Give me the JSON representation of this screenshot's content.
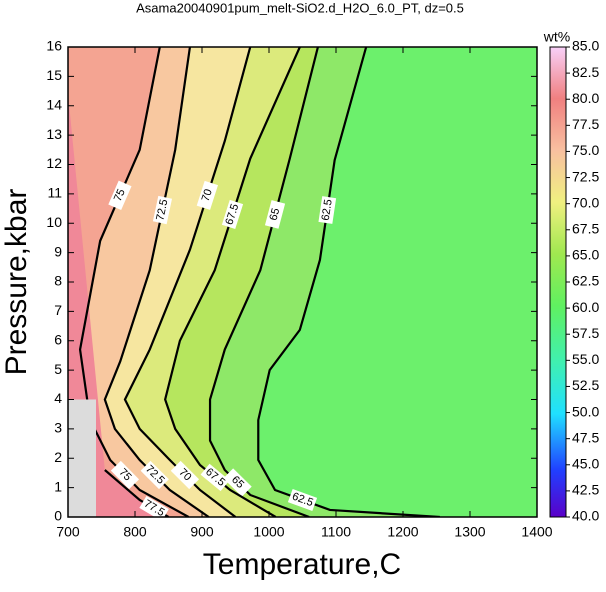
{
  "chart_data": {
    "type": "contour",
    "title": "Asama20040901pum_melt-SiO2.d_H2O_6.0_PT, dz=0.5",
    "xlabel": "Temperature,C",
    "ylabel": "Pressure,kbar",
    "xlim": [
      700,
      1400
    ],
    "ylim": [
      0,
      16
    ],
    "xticks": [
      700,
      800,
      900,
      1000,
      1100,
      1200,
      1300,
      1400
    ],
    "yticks": [
      0,
      1,
      2,
      3,
      4,
      5,
      6,
      7,
      8,
      9,
      10,
      11,
      12,
      13,
      14,
      15,
      16
    ],
    "background_color": "#6cf06c",
    "contours": [
      {
        "level": 62.5,
        "color": "#8ee868",
        "x": [
          1145,
          1098,
          1076,
          1046,
          1001,
          984,
          984,
          1009,
          1091,
          1255
        ],
        "y": [
          16,
          12.15,
          8.75,
          6.37,
          5.0,
          3.3,
          1.94,
          0.92,
          0.24,
          0
        ]
      },
      {
        "level": 65,
        "color": "#b6e65e",
        "x": [
          1073,
          1031,
          987,
          934,
          912,
          912,
          934,
          972,
          1060
        ],
        "y": [
          16,
          12.2,
          8.4,
          5.7,
          4.0,
          2.6,
          1.6,
          0.75,
          0
        ]
      },
      {
        "level": 67.5,
        "color": "#dcea7c",
        "x": [
          1046,
          972,
          919,
          867,
          845,
          860,
          897,
          942,
          1010
        ],
        "y": [
          16,
          12.2,
          8.4,
          6.0,
          4.0,
          3.0,
          1.77,
          0.92,
          0
        ]
      },
      {
        "level": 70,
        "color": "#f6e6a0",
        "x": [
          972,
          934,
          882,
          822,
          785,
          807,
          852,
          897,
          950
        ],
        "y": [
          16,
          12.8,
          9.1,
          5.7,
          4.0,
          3.0,
          1.94,
          0.92,
          0
        ]
      },
      {
        "level": 72.5,
        "color": "#f8c8a0",
        "x": [
          882,
          860,
          822,
          778,
          755,
          770,
          807,
          852,
          910
        ],
        "y": [
          16,
          12.5,
          8.4,
          5.3,
          4.0,
          3.0,
          1.94,
          0.92,
          0
        ]
      },
      {
        "level": 75,
        "color": "#f4a492",
        "x": [
          837,
          807,
          748,
          718,
          733,
          763,
          807,
          880
        ],
        "y": [
          16,
          12.5,
          9.4,
          5.7,
          3.3,
          1.94,
          0.92,
          0
        ]
      },
      {
        "level": 77.5,
        "color": "#f08898",
        "x": [
          755,
          807,
          850
        ],
        "y": [
          1.6,
          0.58,
          0
        ]
      }
    ],
    "colorbar": {
      "label": "wt%",
      "lim": [
        40,
        85
      ],
      "ticks": [
        {
          "value": 40,
          "label": "40.0"
        },
        {
          "value": 42.5,
          "label": "42.5"
        },
        {
          "value": 45,
          "label": "45.0"
        },
        {
          "value": 47.5,
          "label": "47.5"
        },
        {
          "value": 50,
          "label": "50.0"
        },
        {
          "value": 52.5,
          "label": "52.5"
        },
        {
          "value": 55,
          "label": "55.0"
        },
        {
          "value": 57.5,
          "label": "57.5"
        },
        {
          "value": 60,
          "label": "60.0"
        },
        {
          "value": 62.5,
          "label": "62.5"
        },
        {
          "value": 65,
          "label": "65.0"
        },
        {
          "value": 67.5,
          "label": "67.5"
        },
        {
          "value": 70,
          "label": "70.0"
        },
        {
          "value": 72.5,
          "label": "72.5"
        },
        {
          "value": 75,
          "label": "75.0"
        },
        {
          "value": 77.5,
          "label": "77.5"
        },
        {
          "value": 80,
          "label": "80.0"
        },
        {
          "value": 82.5,
          "label": "82.5"
        },
        {
          "value": 85,
          "label": "85.0"
        }
      ]
    }
  }
}
